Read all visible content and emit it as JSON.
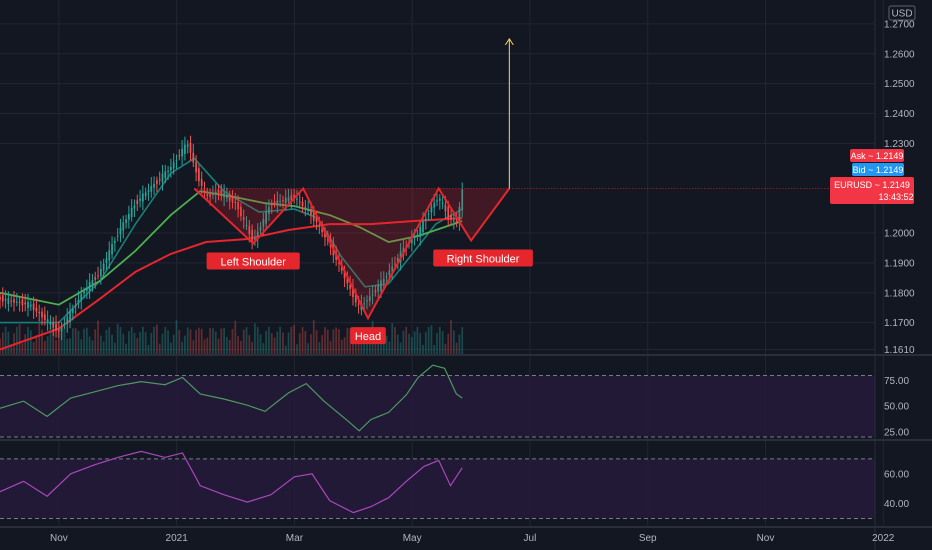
{
  "colors": {
    "background": "#131722",
    "grid": "#232632",
    "candle_up": "#26a69a",
    "candle_down": "#ef5350",
    "pattern": "#e5262d",
    "target_arrow": "#ffd54f",
    "ma_fast": "#15807a",
    "ma_mid": "#4caf50",
    "ma_slow": "#e5262d",
    "osc1": "#4c9a60",
    "osc2": "#ab47bc",
    "panel_fill": "#241a3a",
    "tag_red": "#f23645",
    "tag_blue": "#2196f3"
  },
  "chart_data": {
    "type": "candlestick",
    "instrument": "EURUSD",
    "currency": "USD",
    "price_axis": {
      "ticks": [
        "1.2700",
        "1.2600",
        "1.2500",
        "1.2400",
        "1.2300",
        "1.2000",
        "1.1900",
        "1.1800",
        "1.1700",
        "1.1610"
      ],
      "range": [
        1.1595,
        1.276
      ]
    },
    "time_axis": {
      "labels": [
        "Nov",
        "2021",
        "Mar",
        "May",
        "Jul",
        "Sep",
        "Nov",
        "2022"
      ],
      "label_months": [
        1.0,
        3.0,
        5.0,
        7.0,
        9.0,
        11.0,
        13.0,
        15.0
      ],
      "months_note": "months since 2020-10-01",
      "range": [
        0.0,
        14.86
      ]
    },
    "price_path": [
      [
        0,
        1.178
      ],
      [
        0.5,
        1.176
      ],
      [
        1.0,
        1.167
      ],
      [
        1.4,
        1.18
      ],
      [
        1.7,
        1.187
      ],
      [
        2.0,
        1.2
      ],
      [
        2.3,
        1.21
      ],
      [
        2.6,
        1.216
      ],
      [
        2.9,
        1.222
      ],
      [
        3.1,
        1.228
      ],
      [
        3.2,
        1.23
      ],
      [
        3.3,
        1.222
      ],
      [
        3.5,
        1.212
      ],
      [
        3.7,
        1.214
      ],
      [
        4.0,
        1.21
      ],
      [
        4.3,
        1.197
      ],
      [
        4.6,
        1.21
      ],
      [
        5.0,
        1.212
      ],
      [
        5.3,
        1.206
      ],
      [
        5.6,
        1.196
      ],
      [
        5.9,
        1.183
      ],
      [
        6.1,
        1.175
      ],
      [
        6.3,
        1.179
      ],
      [
        6.5,
        1.184
      ],
      [
        6.7,
        1.19
      ],
      [
        6.9,
        1.196
      ],
      [
        7.1,
        1.2
      ],
      [
        7.3,
        1.208
      ],
      [
        7.45,
        1.212
      ],
      [
        7.6,
        1.206
      ],
      [
        7.75,
        1.203
      ],
      [
        7.85,
        1.214
      ]
    ],
    "volume": {
      "range": [
        0,
        1
      ]
    },
    "moving_averages": [
      {
        "points": [
          [
            0,
            1.17
          ],
          [
            1.0,
            1.17
          ],
          [
            1.7,
            1.184
          ],
          [
            2.3,
            1.203
          ],
          [
            2.9,
            1.22
          ],
          [
            3.3,
            1.225
          ],
          [
            3.8,
            1.214
          ],
          [
            4.4,
            1.207
          ],
          [
            5.0,
            1.208
          ],
          [
            5.4,
            1.205
          ],
          [
            5.8,
            1.192
          ],
          [
            6.2,
            1.182
          ],
          [
            6.6,
            1.183
          ],
          [
            7.0,
            1.193
          ],
          [
            7.4,
            1.203
          ],
          [
            7.85,
            1.208
          ]
        ]
      },
      {
        "points": [
          [
            0,
            1.18
          ],
          [
            1.0,
            1.176
          ],
          [
            1.7,
            1.184
          ],
          [
            2.3,
            1.194
          ],
          [
            2.9,
            1.206
          ],
          [
            3.4,
            1.214
          ],
          [
            4.0,
            1.212
          ],
          [
            4.5,
            1.21
          ],
          [
            5.0,
            1.209
          ],
          [
            5.6,
            1.206
          ],
          [
            6.1,
            1.202
          ],
          [
            6.6,
            1.197
          ],
          [
            7.1,
            1.199
          ],
          [
            7.85,
            1.204
          ]
        ]
      },
      {
        "points": [
          [
            0,
            1.161
          ],
          [
            1.0,
            1.168
          ],
          [
            1.7,
            1.178
          ],
          [
            2.3,
            1.187
          ],
          [
            2.9,
            1.193
          ],
          [
            3.5,
            1.197
          ],
          [
            4.2,
            1.198
          ],
          [
            4.9,
            1.201
          ],
          [
            5.6,
            1.203
          ],
          [
            6.3,
            1.203
          ],
          [
            7.0,
            1.204
          ],
          [
            7.85,
            1.205
          ]
        ]
      }
    ],
    "pattern": {
      "labels": {
        "left_shoulder": "Left Shoulder",
        "head": "Head",
        "right_shoulder": "Right Shoulder"
      },
      "neckline_price": 1.2149,
      "zigzag": [
        [
          3.3,
          1.2149
        ],
        [
          4.3,
          1.1965
        ],
        [
          5.15,
          1.2149
        ],
        [
          6.25,
          1.1715
        ],
        [
          7.45,
          1.2149
        ],
        [
          8.0,
          1.1975
        ],
        [
          8.65,
          1.2149
        ]
      ],
      "label_anchors": {
        "left_shoulder": [
          4.3,
          1.1965
        ],
        "head": [
          6.25,
          1.1715
        ],
        "right_shoulder": [
          8.0,
          1.1975
        ]
      },
      "target": {
        "x": 8.65,
        "from": 1.2149,
        "to": 1.265
      }
    },
    "oscillator_1": {
      "ticks": [
        "75.00",
        "50.00",
        "25.00"
      ],
      "levels": [
        80,
        20
      ],
      "range": [
        18,
        98
      ],
      "points": [
        [
          0,
          48
        ],
        [
          0.4,
          55
        ],
        [
          0.8,
          40
        ],
        [
          1.2,
          58
        ],
        [
          1.6,
          64
        ],
        [
          2.0,
          70
        ],
        [
          2.4,
          74
        ],
        [
          2.8,
          71
        ],
        [
          3.1,
          78
        ],
        [
          3.4,
          62
        ],
        [
          3.8,
          57
        ],
        [
          4.2,
          51
        ],
        [
          4.5,
          45
        ],
        [
          4.9,
          63
        ],
        [
          5.2,
          72
        ],
        [
          5.5,
          55
        ],
        [
          5.9,
          36
        ],
        [
          6.1,
          26
        ],
        [
          6.3,
          37
        ],
        [
          6.6,
          44
        ],
        [
          6.9,
          61
        ],
        [
          7.1,
          78
        ],
        [
          7.35,
          90
        ],
        [
          7.55,
          87
        ],
        [
          7.75,
          62
        ],
        [
          7.85,
          58
        ]
      ]
    },
    "oscillator_2": {
      "ticks": [
        "60.00",
        "40.00"
      ],
      "levels": [
        70,
        30
      ],
      "range": [
        25,
        82
      ],
      "points": [
        [
          0,
          48
        ],
        [
          0.4,
          55
        ],
        [
          0.8,
          45
        ],
        [
          1.2,
          60
        ],
        [
          1.6,
          66
        ],
        [
          2.0,
          71
        ],
        [
          2.4,
          75
        ],
        [
          2.8,
          71
        ],
        [
          3.1,
          74
        ],
        [
          3.4,
          52
        ],
        [
          3.8,
          46
        ],
        [
          4.2,
          41
        ],
        [
          4.6,
          46
        ],
        [
          5.0,
          58
        ],
        [
          5.3,
          60
        ],
        [
          5.6,
          42
        ],
        [
          6.0,
          34
        ],
        [
          6.3,
          38
        ],
        [
          6.6,
          44
        ],
        [
          6.9,
          55
        ],
        [
          7.2,
          65
        ],
        [
          7.45,
          69
        ],
        [
          7.65,
          52
        ],
        [
          7.85,
          64
        ]
      ]
    }
  },
  "price_tags": {
    "ask": "Ask ~ 1.2149",
    "bid": "Bid ~ 1.2149",
    "last": "EURUSD ~ 1.2149",
    "countdown": "13:43:52"
  }
}
